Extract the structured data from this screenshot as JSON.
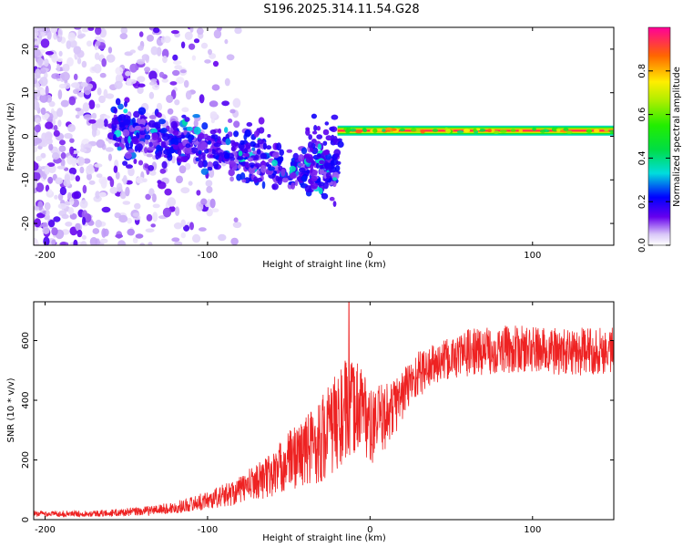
{
  "title": "S196.2025.314.11.54.G28",
  "colors": {
    "snr_line": "#ee2222",
    "axis": "#000000"
  },
  "chart_data": [
    {
      "type": "heatmap",
      "name": "spectrogram",
      "xlabel": "Height of straight line (km)",
      "ylabel": "Frequency (Hz)",
      "xlim": [
        -207,
        150
      ],
      "ylim": [
        -25,
        25
      ],
      "xticks": [
        -200,
        -100,
        0,
        100
      ],
      "yticks": [
        -20,
        -10,
        0,
        10,
        20
      ],
      "colorbar": {
        "label": "Normalized spectral amplitude",
        "range": [
          0,
          1
        ],
        "ticks": [
          0,
          0.2,
          0.4,
          0.6,
          0.8
        ],
        "tick_labels": [
          "0.0",
          "0.2",
          "0.4",
          "0.6",
          "0.8"
        ]
      },
      "features": [
        {
          "name": "scatter",
          "x_range": [
            -207,
            -110
          ],
          "freq_range": [
            -25,
            25
          ],
          "amplitude": [
            0.0,
            0.15
          ]
        },
        {
          "name": "descending_band",
          "x_range": [
            -160,
            -20
          ],
          "freq_start": 2,
          "freq_end": -9,
          "amplitude": [
            0.1,
            0.3
          ]
        },
        {
          "name": "carrier_line",
          "x_range": [
            -20,
            150
          ],
          "freq": 1.3,
          "amplitude": 0.95
        }
      ]
    },
    {
      "type": "line",
      "name": "snr",
      "xlabel": "Height of straight line (km)",
      "ylabel": "SNR (10 * v/v)",
      "xlim": [
        -207,
        150
      ],
      "ylim": [
        0,
        730
      ],
      "xticks": [
        -200,
        -100,
        0,
        100
      ],
      "yticks": [
        0,
        200,
        400,
        600
      ],
      "series": [
        {
          "name": "SNR",
          "x": [
            -207,
            -180,
            -160,
            -140,
            -120,
            -100,
            -90,
            -80,
            -70,
            -60,
            -50,
            -40,
            -30,
            -25,
            -20,
            -15,
            -10,
            -5,
            0,
            5,
            10,
            15,
            20,
            25,
            30,
            40,
            50,
            60,
            80,
            100,
            120,
            150
          ],
          "mean": [
            20,
            20,
            22,
            28,
            40,
            65,
            80,
            100,
            130,
            150,
            200,
            230,
            270,
            300,
            330,
            360,
            370,
            400,
            300,
            330,
            350,
            380,
            420,
            460,
            490,
            520,
            540,
            560,
            570,
            570,
            560,
            570
          ],
          "noise": [
            10,
            10,
            12,
            15,
            20,
            30,
            40,
            45,
            60,
            80,
            100,
            120,
            150,
            160,
            170,
            180,
            160,
            150,
            130,
            120,
            110,
            100,
            90,
            80,
            80,
            70,
            70,
            80,
            80,
            80,
            80,
            80
          ]
        }
      ],
      "spike": {
        "x": -13,
        "value": 730
      }
    }
  ]
}
